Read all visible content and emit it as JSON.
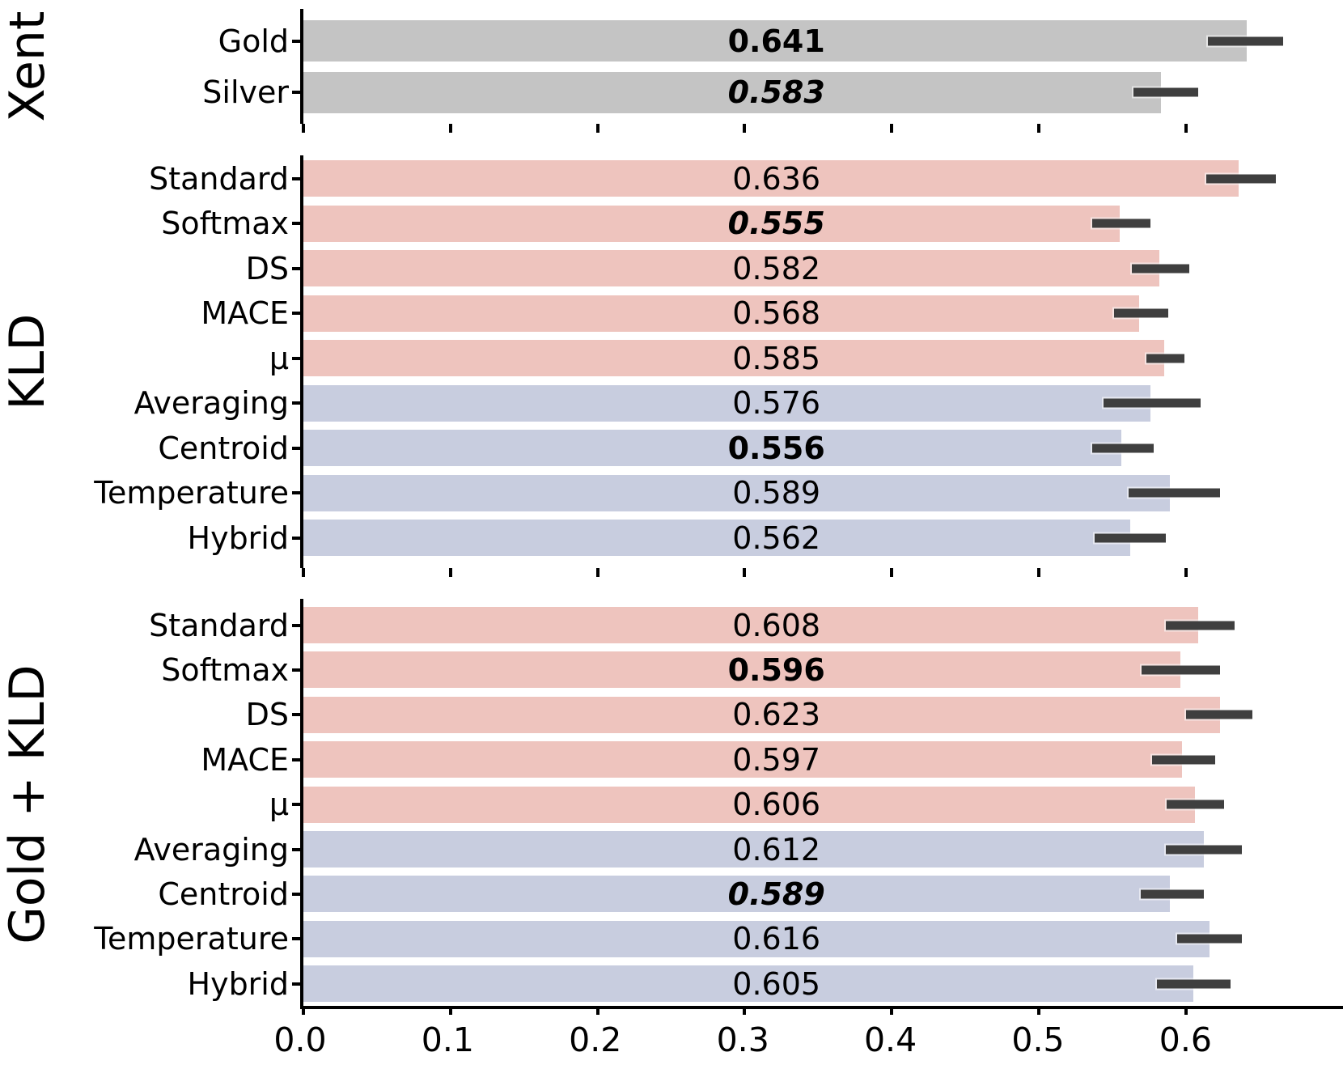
{
  "chart_data": {
    "type": "bar",
    "orientation": "horizontal",
    "title": "",
    "xlabel": "",
    "ylabel": "",
    "xlim": [
      0,
      0.7067
    ],
    "x_ticks": [
      0.0,
      0.1,
      0.2,
      0.3,
      0.4,
      0.5,
      0.6
    ],
    "x_tick_labels": [
      "0.0",
      "0.1",
      "0.2",
      "0.3",
      "0.4",
      "0.5",
      "0.6"
    ],
    "grid": false,
    "legend": null,
    "colors": {
      "gray": "#c4c4c4",
      "pink": "#eec4be",
      "lavender": "#c8cddf",
      "error_bar": "#3f3f3f",
      "axis": "#000000",
      "text": "#000000"
    },
    "panels": [
      {
        "id": "xent",
        "group": "Xent",
        "rows": [
          {
            "label": "Gold",
            "value": 0.641,
            "value_label": "0.641",
            "style": "bold",
            "color": "gray",
            "error": [
              0.615,
              0.666
            ]
          },
          {
            "label": "Silver",
            "value": 0.583,
            "value_label": "0.583",
            "style": "bold-italic",
            "color": "gray",
            "error": [
              0.564,
              0.608
            ]
          }
        ]
      },
      {
        "id": "kld",
        "group": "KLD",
        "rows": [
          {
            "label": "Standard",
            "value": 0.636,
            "value_label": "0.636",
            "style": "normal",
            "color": "pink",
            "error": [
              0.614,
              0.661
            ]
          },
          {
            "label": "Softmax",
            "value": 0.555,
            "value_label": "0.555",
            "style": "bold-italic",
            "color": "pink",
            "error": [
              0.536,
              0.576
            ]
          },
          {
            "label": "DS",
            "value": 0.582,
            "value_label": "0.582",
            "style": "normal",
            "color": "pink",
            "error": [
              0.563,
              0.602
            ]
          },
          {
            "label": "MACE",
            "value": 0.568,
            "value_label": "0.568",
            "style": "normal",
            "color": "pink",
            "error": [
              0.551,
              0.588
            ]
          },
          {
            "label": "μ",
            "value": 0.585,
            "value_label": "0.585",
            "style": "normal",
            "color": "pink",
            "error": [
              0.573,
              0.599
            ]
          },
          {
            "label": "Averaging",
            "value": 0.576,
            "value_label": "0.576",
            "style": "normal",
            "color": "lavender",
            "error": [
              0.544,
              0.61
            ]
          },
          {
            "label": "Centroid",
            "value": 0.556,
            "value_label": "0.556",
            "style": "bold",
            "color": "lavender",
            "error": [
              0.536,
              0.578
            ]
          },
          {
            "label": "Temperature",
            "value": 0.589,
            "value_label": "0.589",
            "style": "normal",
            "color": "lavender",
            "error": [
              0.561,
              0.623
            ]
          },
          {
            "label": "Hybrid",
            "value": 0.562,
            "value_label": "0.562",
            "style": "normal",
            "color": "lavender",
            "error": [
              0.538,
              0.586
            ]
          }
        ]
      },
      {
        "id": "gold-kld",
        "group": "Gold + KLD",
        "rows": [
          {
            "label": "Standard",
            "value": 0.608,
            "value_label": "0.608",
            "style": "normal",
            "color": "pink",
            "error": [
              0.586,
              0.633
            ]
          },
          {
            "label": "Softmax",
            "value": 0.596,
            "value_label": "0.596",
            "style": "bold",
            "color": "pink",
            "error": [
              0.57,
              0.623
            ]
          },
          {
            "label": "DS",
            "value": 0.623,
            "value_label": "0.623",
            "style": "normal",
            "color": "pink",
            "error": [
              0.6,
              0.645
            ]
          },
          {
            "label": "MACE",
            "value": 0.597,
            "value_label": "0.597",
            "style": "normal",
            "color": "pink",
            "error": [
              0.577,
              0.62
            ]
          },
          {
            "label": "μ",
            "value": 0.606,
            "value_label": "0.606",
            "style": "normal",
            "color": "pink",
            "error": [
              0.587,
              0.626
            ]
          },
          {
            "label": "Averaging",
            "value": 0.612,
            "value_label": "0.612",
            "style": "normal",
            "color": "lavender",
            "error": [
              0.586,
              0.638
            ]
          },
          {
            "label": "Centroid",
            "value": 0.589,
            "value_label": "0.589",
            "style": "bold-italic",
            "color": "lavender",
            "error": [
              0.569,
              0.612
            ]
          },
          {
            "label": "Temperature",
            "value": 0.616,
            "value_label": "0.616",
            "style": "normal",
            "color": "lavender",
            "error": [
              0.594,
              0.638
            ]
          },
          {
            "label": "Hybrid",
            "value": 0.605,
            "value_label": "0.605",
            "style": "normal",
            "color": "lavender",
            "error": [
              0.58,
              0.63
            ]
          }
        ]
      }
    ]
  }
}
